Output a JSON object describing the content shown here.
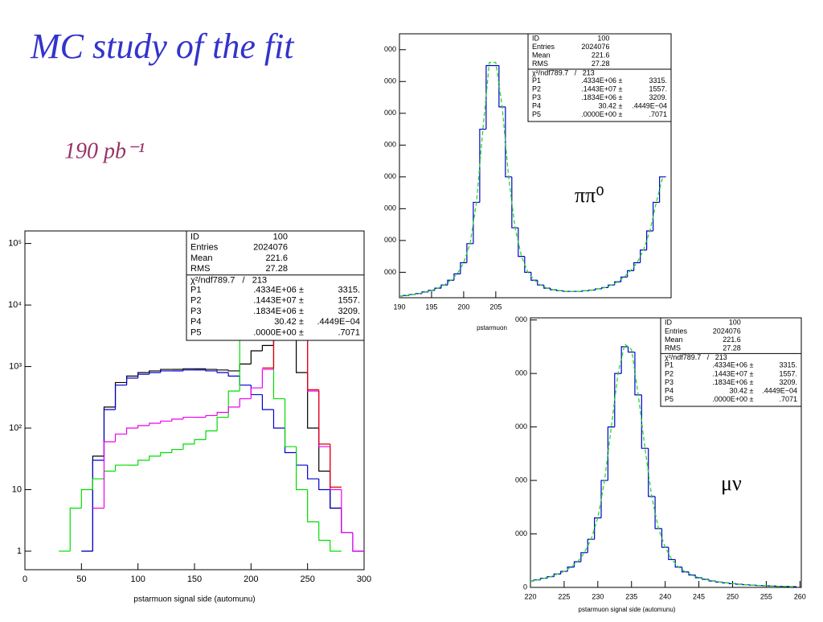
{
  "slide": {
    "title": "MC study of the fit",
    "subtitle": "190 pb⁻¹"
  },
  "chart_data": [
    {
      "type": "histogram",
      "log_y": true,
      "x_label": "pstarmuon signal side (automunu)",
      "xlim": [
        0,
        300
      ],
      "xticks": [
        0,
        50,
        100,
        150,
        200,
        250,
        300
      ],
      "ylim": [
        0.5,
        160000
      ],
      "yticks": [
        1,
        10,
        {
          "value": 100,
          "label": "10²"
        },
        {
          "value": 1000,
          "label": "10³"
        },
        {
          "value": 10000,
          "label": "10⁴"
        },
        {
          "value": 100000,
          "label": "10⁵"
        }
      ],
      "x": [
        35,
        45,
        55,
        65,
        75,
        85,
        95,
        105,
        115,
        125,
        135,
        145,
        155,
        165,
        175,
        185,
        195,
        205,
        215,
        225,
        235,
        245,
        255,
        265,
        275,
        285,
        295
      ],
      "series": [
        {
          "color": "#000000",
          "style": "step",
          "values": [
            null,
            null,
            1,
            35,
            220,
            550,
            700,
            800,
            850,
            900,
            900,
            920,
            920,
            900,
            880,
            850,
            1100,
            1800,
            2200,
            3000,
            8000,
            800,
            100,
            20,
            5,
            2,
            null
          ]
        },
        {
          "color": "#0000cc",
          "style": "step",
          "values": [
            null,
            null,
            1,
            30,
            200,
            500,
            650,
            750,
            800,
            850,
            850,
            880,
            880,
            850,
            800,
            700,
            500,
            350,
            200,
            100,
            40,
            25,
            15,
            10,
            5,
            2,
            1
          ]
        },
        {
          "color": "#00dd00",
          "style": "step",
          "values": [
            1,
            5,
            10,
            15,
            20,
            25,
            25,
            30,
            35,
            40,
            45,
            55,
            65,
            90,
            150,
            400,
            3000,
            30000,
            3000,
            300,
            50,
            10,
            3,
            1.5,
            1,
            null,
            null
          ]
        },
        {
          "color": "#ee00ee",
          "style": "step",
          "values": [
            null,
            null,
            null,
            5,
            60,
            80,
            100,
            110,
            120,
            130,
            140,
            150,
            150,
            160,
            180,
            220,
            300,
            450,
            900,
            5000,
            80000,
            6000,
            400,
            50,
            10,
            2,
            1
          ]
        },
        {
          "color": "#dd0000",
          "style": "step",
          "values": [
            null,
            null,
            null,
            null,
            null,
            null,
            null,
            null,
            null,
            null,
            null,
            null,
            null,
            null,
            null,
            null,
            null,
            null,
            950,
            5200,
            82000,
            6200,
            420,
            55,
            11,
            null,
            null
          ]
        }
      ],
      "stats": {
        "rows": [
          [
            "ID",
            "100"
          ],
          [
            "Entries",
            "2024076"
          ],
          [
            "Mean",
            "221.6"
          ],
          [
            "RMS",
            "27.28"
          ]
        ],
        "fit_title": "χ²/ndf789.7   /   213",
        "fit_rows": [
          [
            "P1",
            ".4334E+06 ±",
            "3315."
          ],
          [
            "P2",
            ".1443E+07 ±",
            "1557."
          ],
          [
            "P3",
            ".1834E+06 ±",
            "3209."
          ],
          [
            "P4",
            "30.42 ±",
            ".4449E−04"
          ],
          [
            "P5",
            ".0000E+00 ±",
            ".7071"
          ]
        ]
      }
    },
    {
      "type": "histogram",
      "log_y": false,
      "x_label": "pstarmuon",
      "annotation": "ππ⁰",
      "xlim": [
        190,
        232.3
      ],
      "xticks": [
        190,
        195,
        200,
        205
      ],
      "ylim": [
        2000,
        85000
      ],
      "yticks": [
        {
          "value": 10000,
          "label": "000"
        },
        {
          "value": 20000,
          "label": "000"
        },
        {
          "value": 30000,
          "label": "000"
        },
        {
          "value": 40000,
          "label": "000"
        },
        {
          "value": 50000,
          "label": "000"
        },
        {
          "value": 60000,
          "label": "000"
        },
        {
          "value": 70000,
          "label": "000"
        },
        {
          "value": 80000,
          "label": "000"
        }
      ],
      "x": [
        190,
        191,
        192,
        193,
        194,
        195,
        196,
        197,
        198,
        199,
        200,
        201,
        202,
        203,
        204,
        205,
        206,
        207,
        208,
        209,
        210,
        211,
        212,
        213,
        214,
        215,
        216,
        217,
        218,
        219,
        220,
        221,
        222,
        223,
        224,
        225,
        226,
        227,
        228,
        229,
        230,
        231
      ],
      "series": [
        {
          "color": "#0000cc",
          "style": "step",
          "values": [
            2500,
            2700,
            3000,
            3300,
            3800,
            4300,
            5000,
            6000,
            7500,
            9500,
            13000,
            19000,
            32000,
            55000,
            75000,
            75000,
            62000,
            40000,
            24000,
            15000,
            10000,
            7500,
            6000,
            5000,
            4500,
            4200,
            4000,
            4000,
            4000,
            4200,
            4400,
            4800,
            5200,
            6000,
            7000,
            8500,
            10500,
            13000,
            17000,
            23000,
            32000,
            40000
          ]
        },
        {
          "color": "#22dd22",
          "style": "dashed",
          "values": [
            2500,
            2700,
            3000,
            3300,
            3800,
            4300,
            5000,
            6000,
            7500,
            9500,
            13000,
            19000,
            32000,
            55000,
            76000,
            76000,
            62000,
            40000,
            24000,
            15000,
            10000,
            7500,
            6000,
            5000,
            4500,
            4200,
            4000,
            4000,
            4000,
            4200,
            4400,
            4800,
            5200,
            6000,
            7000,
            8500,
            10500,
            13000,
            17000,
            23000,
            32000,
            40000
          ]
        }
      ],
      "stats": {
        "rows": [
          [
            "ID",
            "100"
          ],
          [
            "Entries",
            "2024076"
          ],
          [
            "Mean",
            "221.6"
          ],
          [
            "RMS",
            "27.28"
          ]
        ],
        "fit_title": "χ²/ndf789.7   /   213",
        "fit_rows": [
          [
            "P1",
            ".4334E+06 ±",
            "3315."
          ],
          [
            "P2",
            ".1443E+07 ±",
            "1557."
          ],
          [
            "P3",
            ".1834E+06 ±",
            "3209."
          ],
          [
            "P4",
            "30.42 ±",
            ".4449E−04"
          ],
          [
            "P5",
            ".0000E+00 ±",
            ".7071"
          ]
        ]
      }
    },
    {
      "type": "histogram",
      "log_y": false,
      "x_label": "pstarmuon signal side (automunu)",
      "annotation": "μν",
      "xlim": [
        220,
        260.2
      ],
      "xticks": [
        220,
        225,
        230,
        235,
        240,
        245,
        250,
        255,
        260
      ],
      "ylim": [
        0,
        50400
      ],
      "yticks": [
        0,
        {
          "value": 10000,
          "label": "000"
        },
        {
          "value": 20000,
          "label": "000"
        },
        {
          "value": 30000,
          "label": "000"
        },
        {
          "value": 40000,
          "label": "000"
        },
        {
          "value": 50000,
          "label": "000"
        }
      ],
      "x": [
        220,
        221,
        222,
        223,
        224,
        225,
        226,
        227,
        228,
        229,
        230,
        231,
        232,
        233,
        234,
        235,
        236,
        237,
        238,
        239,
        240,
        241,
        242,
        243,
        244,
        245,
        246,
        247,
        248,
        249,
        250,
        251,
        252,
        253,
        254,
        255,
        256,
        257,
        258,
        259
      ],
      "series": [
        {
          "color": "#0000cc",
          "style": "step",
          "values": [
            1200,
            1400,
            1700,
            2000,
            2500,
            3000,
            3800,
            4800,
            6500,
            9000,
            13000,
            20000,
            30000,
            40000,
            45000,
            44000,
            36000,
            26000,
            17000,
            11000,
            7500,
            5200,
            3800,
            2900,
            2300,
            1800,
            1500,
            1200,
            1000,
            850,
            700,
            600,
            500,
            420,
            350,
            300,
            250,
            200,
            170,
            140
          ]
        },
        {
          "color": "#22dd22",
          "style": "dashed",
          "values": [
            1200,
            1400,
            1700,
            2000,
            2500,
            3000,
            3800,
            4800,
            6500,
            9000,
            13000,
            20000,
            30000,
            40000,
            45500,
            44500,
            36000,
            26000,
            17000,
            11000,
            7500,
            5200,
            3800,
            2900,
            2300,
            1800,
            1500,
            1200,
            1000,
            850,
            700,
            600,
            500,
            420,
            350,
            300,
            250,
            200,
            170,
            140
          ]
        }
      ],
      "stats": {
        "rows": [
          [
            "ID",
            "100"
          ],
          [
            "Entries",
            "2024076"
          ],
          [
            "Mean",
            "221.6"
          ],
          [
            "RMS",
            "27.28"
          ]
        ],
        "fit_title": "χ²/ndf789.7   /   213",
        "fit_rows": [
          [
            "P1",
            ".4334E+06 ±",
            "3315."
          ],
          [
            "P2",
            ".1443E+07 ±",
            "1557."
          ],
          [
            "P3",
            ".1834E+06 ±",
            "3209."
          ],
          [
            "P4",
            "30.42 ±",
            ".4449E−04"
          ],
          [
            "P5",
            ".0000E+00 ±",
            ".7071"
          ]
        ]
      }
    }
  ]
}
